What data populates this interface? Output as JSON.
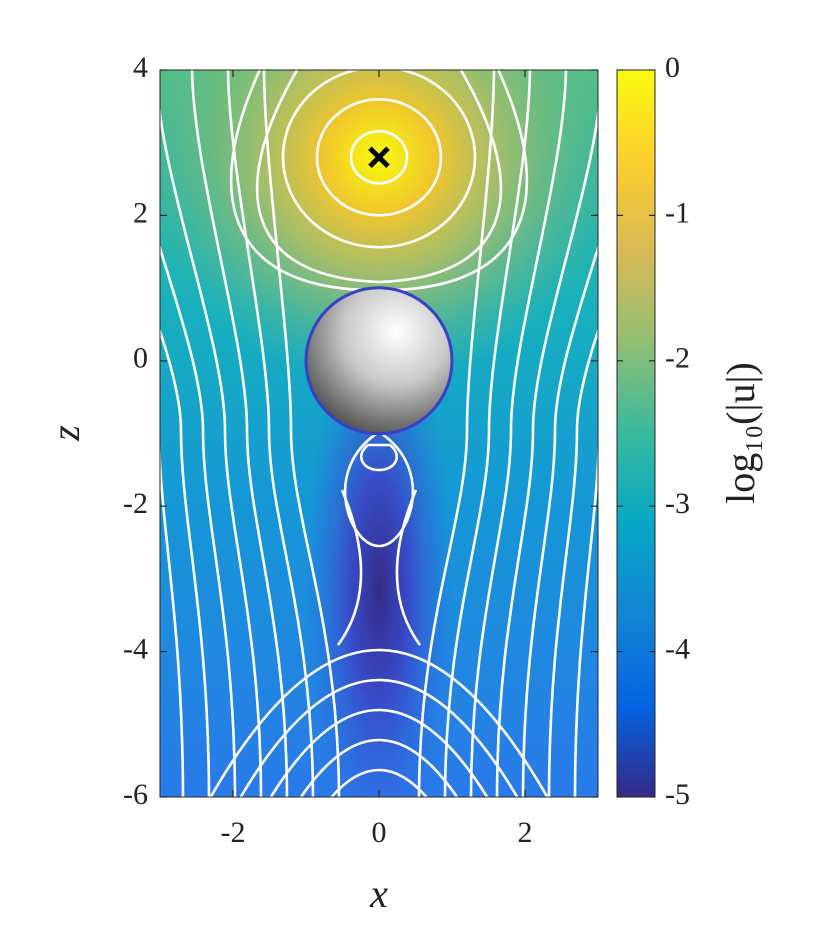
{
  "chart_data": {
    "type": "streamplot",
    "xlabel": "x",
    "ylabel": "z",
    "xlim": [
      -3,
      3
    ],
    "ylim": [
      -6,
      4
    ],
    "xticks": [
      -2,
      0,
      2
    ],
    "yticks": [
      -6,
      -4,
      -2,
      0,
      2,
      4
    ],
    "colorbar": {
      "label": "log₁₀(|u|)",
      "lim": [
        -5,
        0
      ],
      "ticks": [
        0,
        -1,
        -2,
        -3,
        -4,
        -5
      ]
    },
    "marker": {
      "x": 0,
      "z": 2.8,
      "color": "#000000"
    },
    "sphere": {
      "x": 0,
      "z": 0,
      "radius": 1
    }
  }
}
